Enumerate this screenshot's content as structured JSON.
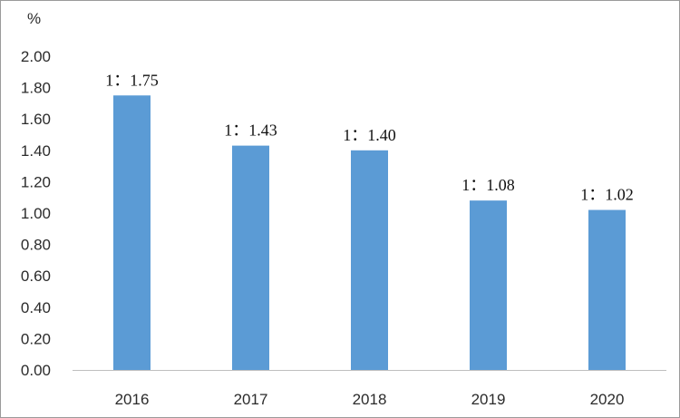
{
  "chart_data": {
    "type": "bar",
    "unit_label": "%",
    "categories": [
      "2016",
      "2017",
      "2018",
      "2019",
      "2020"
    ],
    "values": [
      1.75,
      1.43,
      1.4,
      1.08,
      1.02
    ],
    "data_labels": [
      "1：1.75",
      "1：1.43",
      "1：1.40",
      "1：1.08",
      "1：1.02"
    ],
    "ylim": [
      0,
      2.0
    ],
    "yticks": [
      "0.00",
      "0.20",
      "0.40",
      "0.60",
      "0.80",
      "1.00",
      "1.20",
      "1.40",
      "1.60",
      "1.80",
      "2.00"
    ],
    "grid": false,
    "legend": "none",
    "bar_color": "#5B9BD5",
    "axis_color": "#bfbfbf"
  }
}
